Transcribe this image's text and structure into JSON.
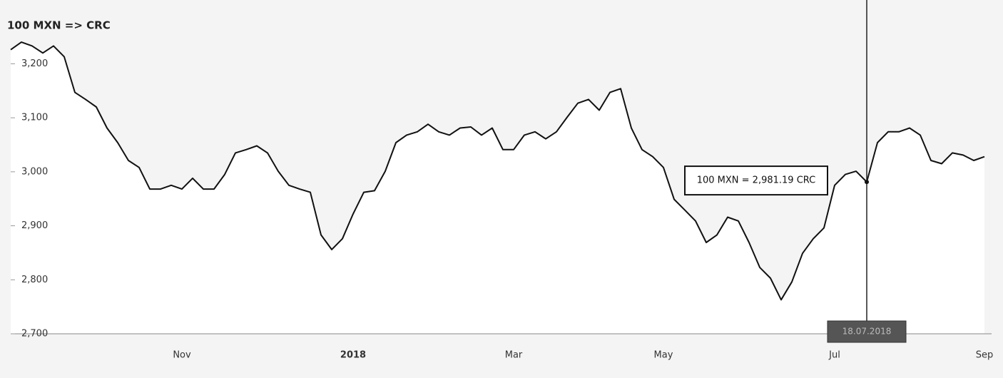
{
  "chart_data": {
    "type": "line",
    "title": "100 MXN => CRC",
    "categories": [
      null,
      null,
      null,
      null,
      null,
      null,
      null,
      null,
      null,
      null,
      null,
      null,
      null,
      null,
      null,
      null,
      "Nov",
      null,
      null,
      null,
      null,
      null,
      null,
      null,
      null,
      null,
      null,
      null,
      null,
      null,
      null,
      null,
      "2018",
      null,
      null,
      null,
      null,
      null,
      null,
      null,
      null,
      null,
      null,
      null,
      null,
      null,
      null,
      "Mar",
      null,
      null,
      null,
      null,
      null,
      null,
      null,
      null,
      null,
      null,
      null,
      null,
      null,
      "May",
      null,
      null,
      null,
      null,
      null,
      null,
      null,
      null,
      null,
      null,
      null,
      null,
      null,
      null,
      null,
      "Jul",
      null,
      null,
      null,
      null,
      null,
      null,
      null,
      null,
      null,
      null,
      null,
      null,
      null,
      "Sep"
    ],
    "values": [
      3226,
      3240,
      3233,
      3220,
      3233,
      3213,
      3147,
      3134,
      3120,
      3081,
      3054,
      3021,
      3008,
      2968,
      2968,
      2975,
      2968,
      2988,
      2968,
      2968,
      2995,
      3035,
      3041,
      3048,
      3035,
      3001,
      2975,
      2968,
      2962,
      2883,
      2856,
      2876,
      2922,
      2962,
      2965,
      3001,
      3054,
      3068,
      3074,
      3088,
      3074,
      3068,
      3081,
      3083,
      3068,
      3081,
      3041,
      3041,
      3068,
      3074,
      3061,
      3074,
      3101,
      3127,
      3134,
      3114,
      3147,
      3154,
      3081,
      3041,
      3028,
      3008,
      2949,
      2929,
      2909,
      2869,
      2883,
      2916,
      2909,
      2869,
      2823,
      2803,
      2763,
      2796,
      2849,
      2876,
      2896,
      2975,
      2995,
      3001,
      2981.19,
      3054,
      3074,
      3074,
      3081,
      3068,
      3021,
      3015,
      3035,
      3031,
      3021,
      3028
    ],
    "color": "#111111",
    "ylim": [
      2700,
      3260
    ],
    "yticks": [
      {
        "value": 2700,
        "label": "2,700"
      },
      {
        "value": 2800,
        "label": "2,800"
      },
      {
        "value": 2900,
        "label": "2,900"
      },
      {
        "value": 3000,
        "label": "3,000"
      },
      {
        "value": 3100,
        "label": "3,100"
      },
      {
        "value": 3200,
        "label": "3,200"
      }
    ],
    "tooltip": {
      "text": "100 MXN = 2,981.19 CRC",
      "value": 2981.19,
      "date": "18.07.2018"
    }
  }
}
